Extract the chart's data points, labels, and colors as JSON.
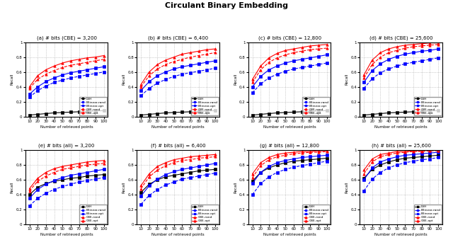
{
  "title": "Circulant Binary Embedding",
  "x_values": [
    10,
    20,
    30,
    40,
    50,
    60,
    70,
    80,
    90,
    100
  ],
  "subplot_titles_top": [
    "(a) # bits (CBE) = 3,200",
    "(b) # bits (CBE) = 6,400",
    "(c) # bits (CBE) = 12,800",
    "(d) # bits (CBE) = 25,600"
  ],
  "subplot_titles_bottom": [
    "(e) # bits (all) = 3,200",
    "(f) # bits (all) = 6,400",
    "(g) # bits (all) = 12,800",
    "(h) # bits (all) = 25,600"
  ],
  "xlabel": "Number of retrieved points",
  "ylabel": "Recall",
  "legend_labels": [
    "LSH",
    "Bilinear-rand",
    "Bilinear-opt",
    "CBE-rand",
    "CBE-opt"
  ],
  "top_row": [
    {
      "LSH": [
        0.02,
        0.03,
        0.04,
        0.05,
        0.055,
        0.06,
        0.065,
        0.07,
        0.075,
        0.08
      ],
      "Bilinear_rand": [
        0.26,
        0.35,
        0.41,
        0.46,
        0.49,
        0.52,
        0.54,
        0.56,
        0.58,
        0.6
      ],
      "Bilinear_opt": [
        0.3,
        0.4,
        0.47,
        0.52,
        0.56,
        0.59,
        0.61,
        0.63,
        0.65,
        0.67
      ],
      "CBE_rand": [
        0.38,
        0.5,
        0.57,
        0.62,
        0.66,
        0.69,
        0.71,
        0.73,
        0.75,
        0.77
      ],
      "CBE_opt": [
        0.4,
        0.55,
        0.63,
        0.68,
        0.72,
        0.75,
        0.77,
        0.79,
        0.8,
        0.82
      ]
    },
    {
      "LSH": [
        0.02,
        0.03,
        0.04,
        0.05,
        0.055,
        0.06,
        0.065,
        0.07,
        0.075,
        0.08
      ],
      "Bilinear_rand": [
        0.28,
        0.38,
        0.45,
        0.5,
        0.54,
        0.57,
        0.59,
        0.61,
        0.63,
        0.65
      ],
      "Bilinear_opt": [
        0.35,
        0.47,
        0.55,
        0.6,
        0.64,
        0.67,
        0.69,
        0.71,
        0.73,
        0.75
      ],
      "CBE_rand": [
        0.4,
        0.55,
        0.64,
        0.7,
        0.74,
        0.77,
        0.8,
        0.82,
        0.84,
        0.86
      ],
      "CBE_opt": [
        0.43,
        0.6,
        0.7,
        0.76,
        0.8,
        0.84,
        0.86,
        0.88,
        0.9,
        0.91
      ]
    },
    {
      "LSH": [
        0.02,
        0.03,
        0.04,
        0.05,
        0.055,
        0.06,
        0.065,
        0.07,
        0.075,
        0.08
      ],
      "Bilinear_rand": [
        0.32,
        0.44,
        0.52,
        0.57,
        0.61,
        0.64,
        0.66,
        0.68,
        0.7,
        0.72
      ],
      "Bilinear_opt": [
        0.4,
        0.54,
        0.63,
        0.68,
        0.72,
        0.75,
        0.77,
        0.79,
        0.81,
        0.83
      ],
      "CBE_rand": [
        0.46,
        0.63,
        0.73,
        0.79,
        0.83,
        0.86,
        0.88,
        0.9,
        0.91,
        0.92
      ],
      "CBE_opt": [
        0.5,
        0.68,
        0.79,
        0.85,
        0.89,
        0.91,
        0.93,
        0.95,
        0.96,
        0.97
      ]
    },
    {
      "LSH": [
        0.02,
        0.03,
        0.04,
        0.05,
        0.055,
        0.06,
        0.065,
        0.07,
        0.075,
        0.08
      ],
      "Bilinear_rand": [
        0.38,
        0.51,
        0.59,
        0.64,
        0.68,
        0.71,
        0.73,
        0.75,
        0.77,
        0.79
      ],
      "Bilinear_opt": [
        0.46,
        0.62,
        0.71,
        0.77,
        0.81,
        0.84,
        0.86,
        0.88,
        0.89,
        0.91
      ],
      "CBE_rand": [
        0.52,
        0.7,
        0.8,
        0.86,
        0.89,
        0.92,
        0.94,
        0.95,
        0.96,
        0.97
      ],
      "CBE_opt": [
        0.56,
        0.76,
        0.86,
        0.91,
        0.94,
        0.96,
        0.97,
        0.98,
        0.99,
        0.99
      ]
    }
  ],
  "bottom_row": [
    {
      "LSH": [
        0.4,
        0.5,
        0.55,
        0.58,
        0.6,
        0.62,
        0.63,
        0.65,
        0.66,
        0.67
      ],
      "Bilinear_rand": [
        0.25,
        0.35,
        0.42,
        0.47,
        0.51,
        0.54,
        0.57,
        0.59,
        0.61,
        0.63
      ],
      "Bilinear_opt": [
        0.35,
        0.47,
        0.54,
        0.59,
        0.63,
        0.66,
        0.68,
        0.7,
        0.72,
        0.74
      ],
      "CBE_rand": [
        0.45,
        0.58,
        0.65,
        0.7,
        0.74,
        0.76,
        0.78,
        0.8,
        0.81,
        0.82
      ],
      "CBE_opt": [
        0.48,
        0.62,
        0.7,
        0.75,
        0.78,
        0.8,
        0.82,
        0.84,
        0.85,
        0.86
      ]
    },
    {
      "LSH": [
        0.43,
        0.54,
        0.6,
        0.64,
        0.66,
        0.68,
        0.7,
        0.72,
        0.73,
        0.74
      ],
      "Bilinear_rand": [
        0.27,
        0.39,
        0.47,
        0.53,
        0.57,
        0.61,
        0.63,
        0.65,
        0.67,
        0.69
      ],
      "Bilinear_opt": [
        0.38,
        0.52,
        0.61,
        0.67,
        0.71,
        0.74,
        0.76,
        0.78,
        0.8,
        0.82
      ],
      "CBE_rand": [
        0.48,
        0.64,
        0.73,
        0.79,
        0.83,
        0.86,
        0.87,
        0.89,
        0.9,
        0.91
      ],
      "CBE_opt": [
        0.52,
        0.68,
        0.78,
        0.83,
        0.87,
        0.89,
        0.91,
        0.92,
        0.93,
        0.94
      ]
    },
    {
      "LSH": [
        0.58,
        0.7,
        0.76,
        0.8,
        0.83,
        0.85,
        0.86,
        0.87,
        0.88,
        0.89
      ],
      "Bilinear_rand": [
        0.4,
        0.55,
        0.64,
        0.7,
        0.74,
        0.77,
        0.79,
        0.81,
        0.83,
        0.85
      ],
      "Bilinear_opt": [
        0.55,
        0.7,
        0.78,
        0.83,
        0.86,
        0.88,
        0.9,
        0.91,
        0.92,
        0.93
      ],
      "CBE_rand": [
        0.63,
        0.79,
        0.87,
        0.91,
        0.93,
        0.95,
        0.96,
        0.97,
        0.97,
        0.98
      ],
      "CBE_opt": [
        0.68,
        0.83,
        0.9,
        0.94,
        0.96,
        0.97,
        0.98,
        0.98,
        0.99,
        0.99
      ]
    },
    {
      "LSH": [
        0.62,
        0.74,
        0.8,
        0.84,
        0.87,
        0.89,
        0.9,
        0.91,
        0.92,
        0.93
      ],
      "Bilinear_rand": [
        0.45,
        0.61,
        0.7,
        0.76,
        0.8,
        0.83,
        0.85,
        0.87,
        0.88,
        0.9
      ],
      "Bilinear_opt": [
        0.6,
        0.76,
        0.84,
        0.88,
        0.91,
        0.93,
        0.94,
        0.95,
        0.96,
        0.97
      ],
      "CBE_rand": [
        0.68,
        0.84,
        0.91,
        0.94,
        0.96,
        0.97,
        0.98,
        0.98,
        0.99,
        0.99
      ],
      "CBE_opt": [
        0.73,
        0.88,
        0.94,
        0.96,
        0.98,
        0.98,
        0.99,
        0.99,
        1.0,
        1.0
      ]
    }
  ]
}
